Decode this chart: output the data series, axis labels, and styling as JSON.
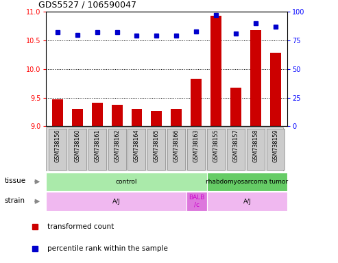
{
  "title": "GDS5527 / 106590047",
  "samples": [
    "GSM738156",
    "GSM738160",
    "GSM738161",
    "GSM738162",
    "GSM738164",
    "GSM738165",
    "GSM738166",
    "GSM738163",
    "GSM738155",
    "GSM738157",
    "GSM738158",
    "GSM738159"
  ],
  "transformed_count": [
    9.47,
    9.3,
    9.41,
    9.38,
    9.3,
    9.27,
    9.3,
    9.83,
    10.93,
    9.67,
    10.68,
    10.28
  ],
  "percentile_rank": [
    82,
    80,
    82,
    82,
    79,
    79,
    79,
    83,
    97,
    81,
    90,
    87
  ],
  "ylim_left": [
    9.0,
    11.0
  ],
  "ylim_right": [
    0,
    100
  ],
  "yticks_left": [
    9.0,
    9.5,
    10.0,
    10.5,
    11.0
  ],
  "yticks_right": [
    0,
    25,
    50,
    75,
    100
  ],
  "bar_color": "#cc0000",
  "dot_color": "#0000cc",
  "tissue_labels": [
    {
      "text": "control",
      "start": 0,
      "end": 7,
      "color": "#aaeaaa"
    },
    {
      "text": "rhabdomyosarcoma tumor",
      "start": 8,
      "end": 11,
      "color": "#66cc66"
    }
  ],
  "strain_labels": [
    {
      "text": "A/J",
      "start": 0,
      "end": 6,
      "color": "#f0b8f0"
    },
    {
      "text": "BALB\n/c",
      "start": 7,
      "end": 7,
      "color": "#dd77dd"
    },
    {
      "text": "A/J",
      "start": 8,
      "end": 11,
      "color": "#f0b8f0"
    }
  ],
  "legend_items": [
    {
      "label": "transformed count",
      "color": "#cc0000",
      "marker": "s"
    },
    {
      "label": "percentile rank within the sample",
      "color": "#0000cc",
      "marker": "s"
    }
  ],
  "tissue_row_label": "tissue",
  "strain_row_label": "strain",
  "sample_box_color": "#cccccc",
  "sample_box_edge": "#888888"
}
